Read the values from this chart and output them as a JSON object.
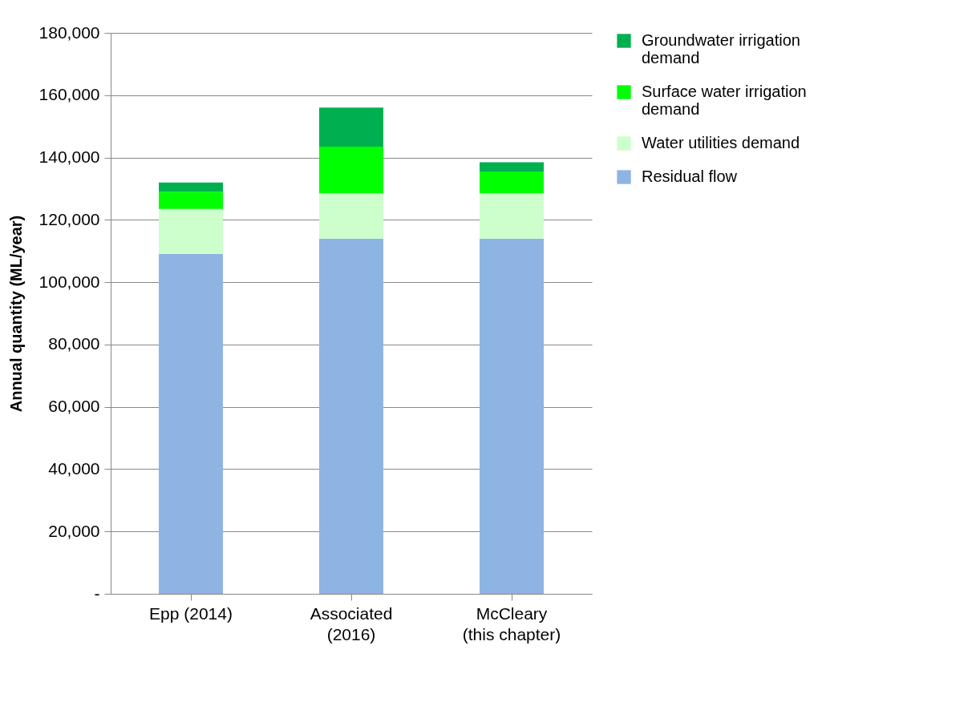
{
  "chart_data": {
    "type": "bar",
    "stacked": true,
    "ylabel": "Annual quantity (ML/year)",
    "categories": [
      "Epp (2014)",
      "Associated (2016)",
      "McCleary (this chapter)"
    ],
    "series": [
      {
        "name": "Residual flow",
        "color": "#8eb4e3",
        "values": [
          109000,
          114000,
          114000
        ]
      },
      {
        "name": "Water utilities demand",
        "color": "#ccffcc",
        "values": [
          14500,
          14500,
          14500
        ]
      },
      {
        "name": "Surface water irrigation demand",
        "color": "#00ff00",
        "values": [
          5500,
          15000,
          7000
        ]
      },
      {
        "name": "Groundwater irrigation demand",
        "color": "#00b050",
        "values": [
          3000,
          12500,
          3000
        ]
      }
    ],
    "ylim": [
      0,
      180000
    ],
    "yticks": [
      {
        "value": 0,
        "label": "-"
      },
      {
        "value": 20000,
        "label": "20,000"
      },
      {
        "value": 40000,
        "label": "40,000"
      },
      {
        "value": 60000,
        "label": "60,000"
      },
      {
        "value": 80000,
        "label": "80,000"
      },
      {
        "value": 100000,
        "label": "100,000"
      },
      {
        "value": 120000,
        "label": "120,000"
      },
      {
        "value": 140000,
        "label": "140,000"
      },
      {
        "value": 160000,
        "label": "160,000"
      },
      {
        "value": 180000,
        "label": "180,000"
      }
    ],
    "grid": "y",
    "legend": "right"
  }
}
